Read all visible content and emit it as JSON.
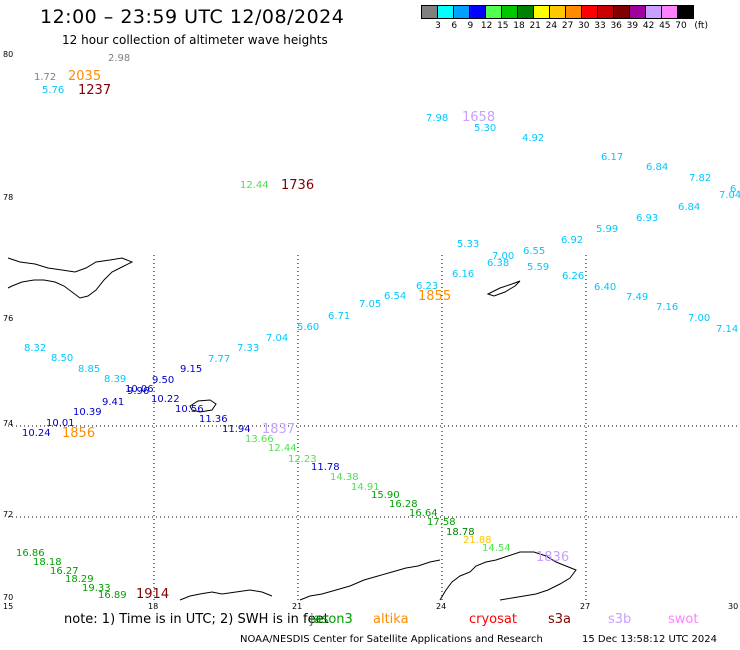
{
  "header": {
    "title": "12:00 – 23:59 UTC 12/08/2024",
    "subtitle": "12 hour collection of altimeter wave heights"
  },
  "colorbar": {
    "colors": [
      "#808080",
      "#00ffff",
      "#00a0ff",
      "#0000ff",
      "#50ff50",
      "#00c800",
      "#008000",
      "#ffff00",
      "#ffc800",
      "#ff8c00",
      "#ff0000",
      "#c80000",
      "#800000",
      "#a000a0",
      "#c8a0ff",
      "#ff80ff",
      "#000000"
    ],
    "tick_labels": [
      "3",
      "6",
      "9",
      "12",
      "15",
      "18",
      "21",
      "24",
      "27",
      "30",
      "33",
      "36",
      "39",
      "42",
      "45",
      "70",
      "(ft)"
    ]
  },
  "axes": {
    "lat_labels": [
      "80",
      "78",
      "76",
      "74",
      "72",
      "70"
    ],
    "lon_labels": [
      "15",
      "18",
      "21",
      "24",
      "27",
      "30"
    ]
  },
  "footer": {
    "note_prefix": "note:  1) Time is in UTC;  2) SWH is in feet",
    "satellites": [
      {
        "name": "jason3",
        "color": "#00a000"
      },
      {
        "name": "altika",
        "color": "#ff8c00"
      },
      {
        "name": "cryosat",
        "color": "#ff0000"
      },
      {
        "name": "s3a",
        "color": "#800000"
      },
      {
        "name": "s3b",
        "color": "#c8a0ff"
      },
      {
        "name": "swot",
        "color": "#ff80ff"
      }
    ],
    "credit": "NOAA/NESDIS Center for Satellite Applications and Research",
    "timestamp": "15 Dec 13:58:12 UTC 2024"
  },
  "observations": [
    {
      "t": "2.98",
      "c": "#808080"
    },
    {
      "t": "1.72",
      "c": "#808080"
    },
    {
      "t": "2035",
      "c": "#ff8c00",
      "time": true
    },
    {
      "t": "5.76",
      "c": "#00c8ff"
    },
    {
      "t": "1237",
      "c": "#800000",
      "time": true
    },
    {
      "t": "7.98",
      "c": "#00c8ff"
    },
    {
      "t": "1658",
      "c": "#c8a0ff",
      "time": true
    },
    {
      "t": "5.30",
      "c": "#00c8ff"
    },
    {
      "t": "4.92",
      "c": "#00c8ff"
    },
    {
      "t": "6.17",
      "c": "#00c8ff"
    },
    {
      "t": "6.84",
      "c": "#00c8ff"
    },
    {
      "t": "7.82",
      "c": "#00c8ff"
    },
    {
      "t": "6.",
      "c": "#00c8ff"
    },
    {
      "t": "7.04",
      "c": "#00c8ff"
    },
    {
      "t": "12.44",
      "c": "#50e050"
    },
    {
      "t": "1736",
      "c": "#800000",
      "time": true
    },
    {
      "t": "6.84",
      "c": "#00c8ff"
    },
    {
      "t": "6.93",
      "c": "#00c8ff"
    },
    {
      "t": "5.99",
      "c": "#00c8ff"
    },
    {
      "t": "6.92",
      "c": "#00c8ff"
    },
    {
      "t": "5.33",
      "c": "#00c8ff"
    },
    {
      "t": "7.00",
      "c": "#00c8ff"
    },
    {
      "t": "6.55",
      "c": "#00c8ff"
    },
    {
      "t": "6.38",
      "c": "#00c8ff"
    },
    {
      "t": "5.59",
      "c": "#00c8ff"
    },
    {
      "t": "6.16",
      "c": "#00c8ff"
    },
    {
      "t": "6.26",
      "c": "#00c8ff"
    },
    {
      "t": "6.23",
      "c": "#00c8ff"
    },
    {
      "t": "1855",
      "c": "#ff8c00",
      "time": true
    },
    {
      "t": "6.54",
      "c": "#00c8ff"
    },
    {
      "t": "7.05",
      "c": "#00c8ff"
    },
    {
      "t": "6.40",
      "c": "#00c8ff"
    },
    {
      "t": "7.49",
      "c": "#00c8ff"
    },
    {
      "t": "7.16",
      "c": "#00c8ff"
    },
    {
      "t": "7.00",
      "c": "#00c8ff"
    },
    {
      "t": "7.14",
      "c": "#00c8ff"
    },
    {
      "t": "6.71",
      "c": "#00c8ff"
    },
    {
      "t": "5.60",
      "c": "#00c8ff"
    },
    {
      "t": "7.04",
      "c": "#00c8ff"
    },
    {
      "t": "7.33",
      "c": "#00c8ff"
    },
    {
      "t": "7.77",
      "c": "#00c8ff"
    },
    {
      "t": "8.32",
      "c": "#00c8ff"
    },
    {
      "t": "8.50",
      "c": "#00c8ff"
    },
    {
      "t": "8.85",
      "c": "#00c8ff"
    },
    {
      "t": "8.39",
      "c": "#00c8ff"
    },
    {
      "t": "9.15",
      "c": "#0000c8"
    },
    {
      "t": "9.50",
      "c": "#0000c8"
    },
    {
      "t": "10.06",
      "c": "#0000c8"
    },
    {
      "t": "9.96",
      "c": "#0000c8"
    },
    {
      "t": "9.41",
      "c": "#0000c8"
    },
    {
      "t": "10.22",
      "c": "#0000c8"
    },
    {
      "t": "10.39",
      "c": "#0000c8"
    },
    {
      "t": "10.56",
      "c": "#0000c8"
    },
    {
      "t": "11.36",
      "c": "#0000c8"
    },
    {
      "t": "10.01",
      "c": "#0000c8"
    },
    {
      "t": "10.24",
      "c": "#0000c8"
    },
    {
      "t": "1856",
      "c": "#ff8c00",
      "time": true
    },
    {
      "t": "11.94",
      "c": "#0000c8"
    },
    {
      "t": "1837",
      "c": "#c8a0ff",
      "time": true
    },
    {
      "t": "13.66",
      "c": "#50e050"
    },
    {
      "t": "12.44",
      "c": "#50e050"
    },
    {
      "t": "12.23",
      "c": "#50e050"
    },
    {
      "t": "11.78",
      "c": "#0000c8"
    },
    {
      "t": "14.38",
      "c": "#50e050"
    },
    {
      "t": "14.91",
      "c": "#50e050"
    },
    {
      "t": "15.90",
      "c": "#00a000"
    },
    {
      "t": "16.28",
      "c": "#00a000"
    },
    {
      "t": "16.64",
      "c": "#00a000"
    },
    {
      "t": "17.58",
      "c": "#00a000"
    },
    {
      "t": "18.78",
      "c": "#008000"
    },
    {
      "t": "21.88",
      "c": "#ffc800"
    },
    {
      "t": "14.54",
      "c": "#50e050"
    },
    {
      "t": "1836",
      "c": "#c8a0ff",
      "time": true
    },
    {
      "t": "16.86",
      "c": "#00a000"
    },
    {
      "t": "18.18",
      "c": "#00a000"
    },
    {
      "t": "16.27",
      "c": "#00a000"
    },
    {
      "t": "18.29",
      "c": "#00a000"
    },
    {
      "t": "19.33",
      "c": "#00a000"
    },
    {
      "t": "16.89",
      "c": "#00a000"
    },
    {
      "t": "1914",
      "c": "#800000",
      "time": true
    }
  ]
}
